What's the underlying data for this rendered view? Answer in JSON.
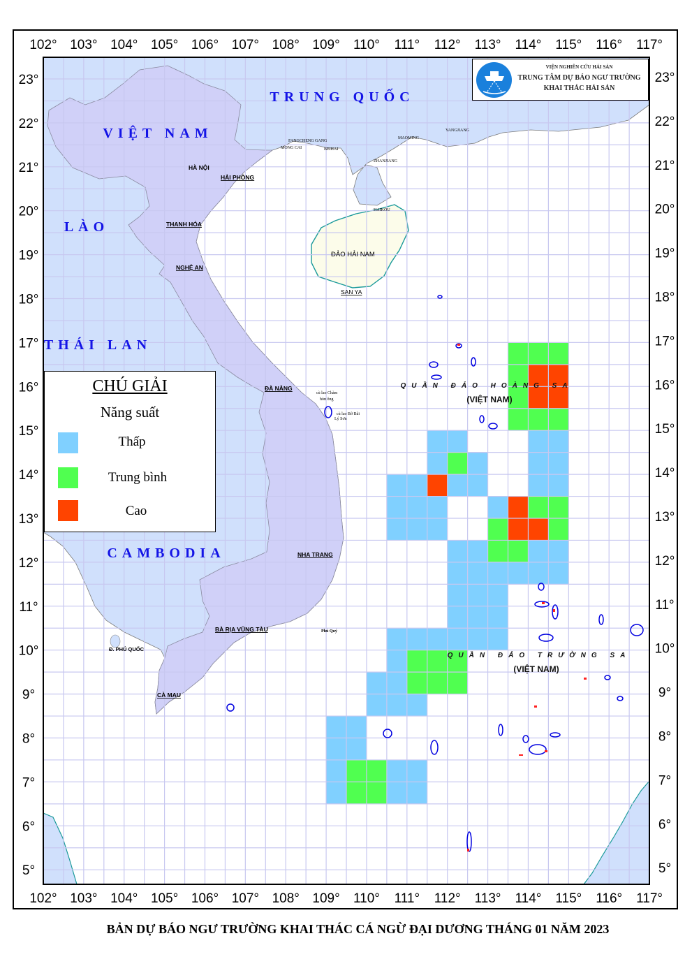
{
  "title": "BẢN DỰ BÁO NGƯ TRƯỜNG KHAI THÁC  CÁ NGỪ ĐẠI DƯƠNG THÁNG 01 NĂM 2023",
  "logo": {
    "line1": "VIỆN NGHIÊN CỨU HẢI SẢN",
    "line2": "TRUNG TÂM DỰ BÁO NGƯ TRƯỜNG",
    "line3": "KHAI THÁC HẢI SẢN"
  },
  "axes": {
    "lon_ticks": [
      "102°",
      "103°",
      "104°",
      "105°",
      "106°",
      "107°",
      "108°",
      "109°",
      "110°",
      "111°",
      "112°",
      "113°",
      "114°",
      "115°",
      "116°",
      "117°"
    ],
    "lat_ticks": [
      "23°",
      "22°",
      "21°",
      "20°",
      "19°",
      "18°",
      "17°",
      "16°",
      "15°",
      "14°",
      "13°",
      "12°",
      "11°",
      "10°",
      "9°",
      "8°",
      "7°",
      "6°",
      "5°"
    ],
    "lon_range": [
      102,
      117
    ],
    "lat_range": [
      4.7,
      23.5
    ],
    "grid_step_deg": 0.5
  },
  "countries": {
    "china": "TRUNG QUỐC",
    "vietnam": "VIỆT NAM",
    "laos": "LÀO",
    "thailand": "THÁI LAN",
    "cambodia": "CAMBODIA"
  },
  "places": {
    "hanoi": "HÀ NỘI",
    "haiphong": "HẢI PHÒNG",
    "thanhhoa": "THANH HÓA",
    "nghean": "NGHỆ AN",
    "danang": "ĐÀ NẴNG",
    "nhatrang": "NHA TRANG",
    "baria": "BÀ RỊA VŨNG TÀU",
    "camau": "CÀ MAU",
    "phuquoc": "Đ. PHÚ QUỐC",
    "hainan": "ĐẢO HẢI NAM",
    "sanya": "SAN YA",
    "haikou": "HAIKOU",
    "zhanjiang": "ZHANJIANG",
    "beihai": "BEIHAI",
    "fangcheng": "FANGCHENG GANG",
    "mongcai": "MONG CAI",
    "maoming": "MAOMING",
    "yangjiang": "YANGJIANG",
    "culaocham": "cù lao Chàm",
    "honong": "hòn ông",
    "culaobobai": "cù lao Bờ Bãi",
    "lyson": "Lý Sơn",
    "phuquy": "Phú Quý"
  },
  "archipelagos": {
    "hoangsa": "QUẦN ĐẢO HOÀNG SA",
    "hoangsa_sub": "(VIỆT NAM)",
    "truongsa": "QUẦN ĐẢO TRƯỜNG SA",
    "truongsa_sub": "(VIỆT NAM)"
  },
  "legend": {
    "title": "CHÚ GIẢI",
    "subtitle": "Năng suất",
    "items": [
      {
        "label": "Thấp",
        "level": "low",
        "color": "#80d0ff"
      },
      {
        "label": "Trung bình",
        "level": "medium",
        "color": "#50ff50"
      },
      {
        "label": "Cao",
        "level": "high",
        "color": "#ff4400"
      }
    ]
  },
  "colors": {
    "low": "#80d0ff",
    "medium": "#50ff50",
    "high": "#ff4400",
    "vietnam_land": "#d0d0f8",
    "foreign_land": "#d0e0fc",
    "hainan_land": "#fcfcea",
    "grid": "#c8c8f0",
    "country_label": "#1414e6"
  },
  "forecast_cells": [
    {
      "lat_top": 17,
      "spans": [
        [
          113.5,
          115,
          "medium"
        ]
      ]
    },
    {
      "lat_top": 16.5,
      "spans": [
        [
          113.5,
          114,
          "medium"
        ],
        [
          114,
          115,
          "high"
        ]
      ]
    },
    {
      "lat_top": 16,
      "spans": [
        [
          113.5,
          114,
          "medium"
        ],
        [
          114,
          115,
          "high"
        ]
      ]
    },
    {
      "lat_top": 15.5,
      "spans": [
        [
          113.5,
          115,
          "medium"
        ]
      ]
    },
    {
      "lat_top": 15,
      "spans": [
        [
          111.5,
          112.5,
          "low"
        ],
        [
          114,
          115,
          "low"
        ]
      ]
    },
    {
      "lat_top": 14.5,
      "spans": [
        [
          111.5,
          112,
          "low"
        ],
        [
          112,
          112.5,
          "medium"
        ],
        [
          112.5,
          113,
          "low"
        ],
        [
          114,
          115,
          "low"
        ]
      ]
    },
    {
      "lat_top": 14,
      "spans": [
        [
          110.5,
          111.5,
          "low"
        ],
        [
          111.5,
          112,
          "high"
        ],
        [
          112,
          113,
          "low"
        ],
        [
          114,
          115,
          "low"
        ]
      ]
    },
    {
      "lat_top": 13.5,
      "spans": [
        [
          110.5,
          112,
          "low"
        ],
        [
          113,
          113.5,
          "low"
        ],
        [
          113.5,
          114,
          "high"
        ],
        [
          114,
          115,
          "medium"
        ]
      ]
    },
    {
      "lat_top": 13,
      "spans": [
        [
          110.5,
          112,
          "low"
        ],
        [
          113,
          113.5,
          "medium"
        ],
        [
          113.5,
          114.5,
          "high"
        ],
        [
          114.5,
          115,
          "medium"
        ]
      ]
    },
    {
      "lat_top": 12.5,
      "spans": [
        [
          112,
          113,
          "low"
        ],
        [
          113,
          114,
          "medium"
        ],
        [
          114,
          115,
          "low"
        ]
      ]
    },
    {
      "lat_top": 12,
      "spans": [
        [
          112,
          115,
          "low"
        ]
      ]
    },
    {
      "lat_top": 11.5,
      "spans": [
        [
          112,
          113.5,
          "low"
        ]
      ]
    },
    {
      "lat_top": 11,
      "spans": [
        [
          112,
          113.5,
          "low"
        ]
      ]
    },
    {
      "lat_top": 10.5,
      "spans": [
        [
          110.5,
          113.5,
          "low"
        ]
      ]
    },
    {
      "lat_top": 10,
      "spans": [
        [
          110.5,
          111,
          "low"
        ],
        [
          111,
          112.5,
          "medium"
        ]
      ]
    },
    {
      "lat_top": 9.5,
      "spans": [
        [
          110,
          111,
          "low"
        ],
        [
          111,
          112.5,
          "medium"
        ]
      ]
    },
    {
      "lat_top": 9,
      "spans": [
        [
          110,
          111.5,
          "low"
        ]
      ]
    },
    {
      "lat_top": 8.5,
      "spans": [
        [
          109,
          110,
          "low"
        ]
      ]
    },
    {
      "lat_top": 8,
      "spans": [
        [
          109,
          110,
          "low"
        ]
      ]
    },
    {
      "lat_top": 7.5,
      "spans": [
        [
          109,
          109.5,
          "low"
        ],
        [
          109.5,
          110.5,
          "medium"
        ],
        [
          110.5,
          111.5,
          "low"
        ]
      ]
    },
    {
      "lat_top": 7,
      "spans": [
        [
          109,
          109.5,
          "low"
        ],
        [
          109.5,
          110.5,
          "medium"
        ],
        [
          110.5,
          111.5,
          "low"
        ]
      ]
    }
  ]
}
